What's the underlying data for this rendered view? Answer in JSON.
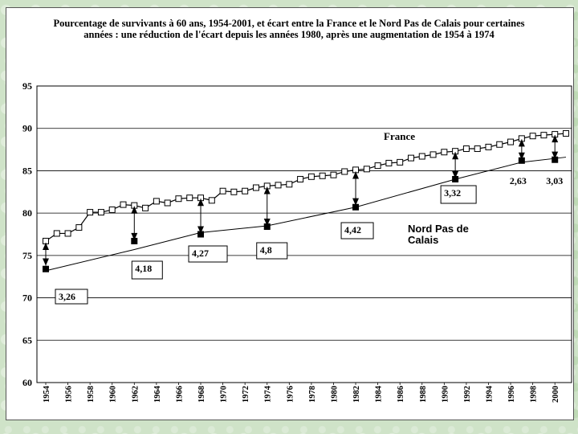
{
  "chart_data": {
    "type": "line",
    "title": "Pourcentage de survivants à 60 ans, 1954-2001, et écart entre la France et le Nord Pas de Calais pour certaines années : une réduction de l'écart depuis les années 1980, après une augmentation de 1954 à 1974",
    "xlabel": "",
    "ylabel": "",
    "ylim": [
      60,
      95
    ],
    "xlim": [
      1954,
      2001
    ],
    "yticks": [
      "60",
      "65",
      "70",
      "75",
      "80",
      "85",
      "90",
      "95"
    ],
    "xticks": [
      "1954",
      "1956",
      "1958",
      "1960",
      "1962",
      "1964",
      "1966",
      "1968",
      "1970",
      "1972",
      "1974",
      "1976",
      "1978",
      "1980",
      "1982",
      "1984",
      "1986",
      "1988",
      "1990",
      "1992",
      "1994",
      "1996",
      "1998",
      "2000"
    ],
    "grid": true,
    "series": [
      {
        "name": "France",
        "marker": "open-square",
        "x": [
          1954,
          1955,
          1956,
          1957,
          1958,
          1959,
          1960,
          1961,
          1962,
          1963,
          1964,
          1965,
          1966,
          1967,
          1968,
          1969,
          1970,
          1971,
          1972,
          1973,
          1974,
          1975,
          1976,
          1977,
          1978,
          1979,
          1980,
          1981,
          1982,
          1983,
          1984,
          1985,
          1986,
          1987,
          1988,
          1989,
          1990,
          1991,
          1992,
          1993,
          1994,
          1995,
          1996,
          1997,
          1998,
          1999,
          2000,
          2001
        ],
        "values": [
          76.7,
          77.6,
          77.6,
          78.3,
          80.1,
          80.1,
          80.4,
          81.0,
          80.9,
          80.6,
          81.4,
          81.2,
          81.7,
          81.8,
          81.8,
          81.5,
          82.6,
          82.5,
          82.6,
          83.0,
          83.2,
          83.3,
          83.4,
          84.0,
          84.3,
          84.4,
          84.5,
          84.9,
          85.1,
          85.2,
          85.6,
          85.9,
          86.0,
          86.5,
          86.7,
          86.9,
          87.2,
          87.3,
          87.6,
          87.6,
          87.8,
          88.1,
          88.4,
          88.8,
          89.1,
          89.2,
          89.3,
          89.4
        ]
      },
      {
        "name": "Nord Pas de Calais",
        "marker": "filled-square",
        "x": [
          1954,
          1962,
          1968,
          1974,
          1982,
          1991,
          1997,
          2000
        ],
        "values": [
          73.4,
          76.7,
          77.5,
          78.4,
          80.7,
          84.0,
          86.2,
          86.3
        ]
      }
    ],
    "trend": {
      "x": [
        1954,
        1962,
        1968,
        1974,
        1982,
        1991,
        1997,
        2001
      ],
      "values": [
        73.2,
        75.7,
        77.7,
        78.5,
        80.7,
        84.0,
        86.0,
        86.6
      ]
    },
    "gaps": [
      {
        "x": 1954,
        "from": 73.8,
        "to": 76.5,
        "label": "3,26"
      },
      {
        "x": 1962,
        "from": 76.8,
        "to": 80.8,
        "label": "4,18"
      },
      {
        "x": 1968,
        "from": 77.6,
        "to": 81.7,
        "label": "4,27"
      },
      {
        "x": 1974,
        "from": 78.5,
        "to": 83.1,
        "label": "4,8"
      },
      {
        "x": 1982,
        "from": 80.9,
        "to": 84.9,
        "label": "4,42"
      },
      {
        "x": 1991,
        "from": 84.1,
        "to": 87.2,
        "label": "3,32"
      },
      {
        "x": 1997,
        "from": 86.3,
        "to": 88.7,
        "label": "2,63"
      },
      {
        "x": 2000,
        "from": 86.4,
        "to": 89.2,
        "label": "3,03"
      }
    ],
    "annotations": [
      {
        "text": "France",
        "x": 1990,
        "y": 88.8
      },
      {
        "text": "Nord Pas de Calais",
        "x": 1989,
        "y": 78.5
      }
    ]
  }
}
